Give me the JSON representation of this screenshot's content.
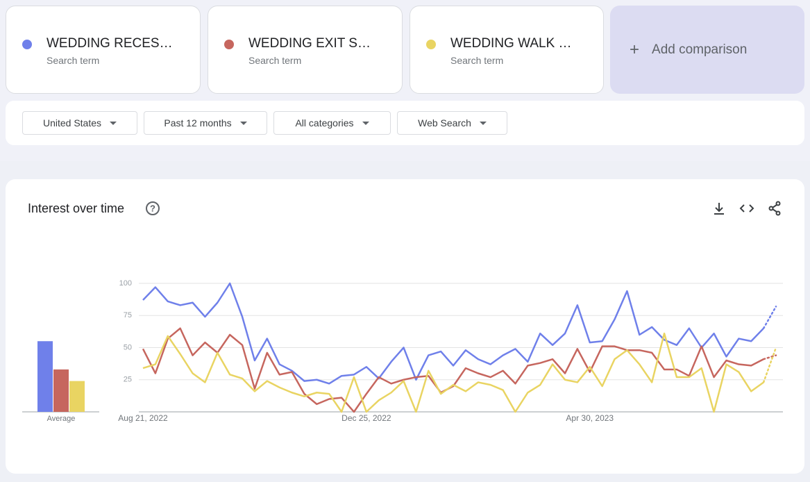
{
  "add_comparison": "Add comparison",
  "filters": [
    "United States",
    "Past 12 months",
    "All categories",
    "Web Search"
  ],
  "chart_data": {
    "type": "line",
    "title": "Interest over time",
    "average_label": "Average",
    "categories": [
      "Aug 21, 2022",
      null,
      null,
      null,
      null,
      null,
      null,
      null,
      null,
      null,
      null,
      null,
      null,
      null,
      null,
      null,
      null,
      null,
      "Dec 25, 2022",
      null,
      null,
      null,
      null,
      null,
      null,
      null,
      null,
      null,
      null,
      null,
      null,
      null,
      null,
      null,
      null,
      null,
      "Apr 30, 2023",
      null,
      null,
      null,
      null,
      null,
      null,
      null,
      null,
      null,
      null,
      null,
      null,
      null,
      null,
      null
    ],
    "series": [
      {
        "name": "WEDDING RECES…",
        "subtitle": "Search term",
        "color": "#6f80ea",
        "average": 55,
        "values": [
          87,
          97,
          86,
          83,
          85,
          74,
          85,
          100,
          74,
          40,
          57,
          37,
          32,
          24,
          25,
          22,
          28,
          29,
          35,
          26,
          39,
          50,
          25,
          44,
          47,
          36,
          48,
          41,
          37,
          44,
          49,
          39,
          61,
          52,
          61,
          83,
          54,
          55,
          72,
          94,
          60,
          66,
          56,
          52,
          65,
          50,
          61,
          43,
          57,
          55,
          65,
          82
        ]
      },
      {
        "name": "WEDDING EXIT S…",
        "subtitle": "Search term",
        "color": "#c6665e",
        "average": 33,
        "values": [
          49,
          30,
          57,
          65,
          44,
          54,
          46,
          60,
          52,
          18,
          46,
          29,
          31,
          14,
          6,
          10,
          11,
          0,
          14,
          27,
          22,
          25,
          27,
          28,
          15,
          20,
          34,
          30,
          27,
          32,
          22,
          36,
          38,
          41,
          30,
          49,
          31,
          51,
          51,
          48,
          48,
          46,
          33,
          33,
          28,
          51,
          27,
          40,
          37,
          36,
          41,
          44
        ]
      },
      {
        "name": "WEDDING WALK …",
        "subtitle": "Search term",
        "color": "#e9d462",
        "average": 24,
        "values": [
          34,
          37,
          59,
          45,
          30,
          23,
          46,
          29,
          26,
          16,
          24,
          19,
          15,
          12,
          15,
          14,
          0,
          27,
          0,
          9,
          15,
          24,
          0,
          32,
          14,
          21,
          16,
          23,
          21,
          17,
          0,
          15,
          21,
          37,
          25,
          23,
          35,
          20,
          41,
          48,
          37,
          23,
          61,
          27,
          27,
          34,
          0,
          37,
          31,
          16,
          23,
          50
        ]
      }
    ],
    "ylim": [
      0,
      100
    ],
    "yticks": [
      25,
      50,
      75,
      100
    ],
    "grid": true
  }
}
